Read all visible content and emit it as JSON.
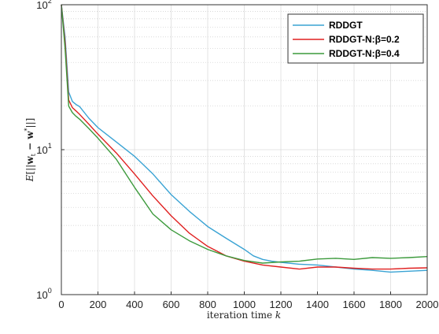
{
  "chart_data": {
    "type": "line",
    "title": "",
    "xlabel": "iteration time k",
    "ylabel": "E[||w_t − w*||]",
    "ylabel_parts": {
      "prefix": "E",
      "open": "[||",
      "w": "w",
      "sub": "t",
      "minus": " − w",
      "sup": "*",
      "close": "||]"
    },
    "x_scale": "linear",
    "y_scale": "log",
    "xlim": [
      0,
      2000
    ],
    "ylim": [
      1,
      100
    ],
    "xticks": [
      {
        "value": 0,
        "label": "0"
      },
      {
        "value": 200,
        "label": "200"
      },
      {
        "value": 400,
        "label": "400"
      },
      {
        "value": 600,
        "label": "600"
      },
      {
        "value": 800,
        "label": "800"
      },
      {
        "value": 1000,
        "label": "1000"
      },
      {
        "value": 1200,
        "label": "1200"
      },
      {
        "value": 1400,
        "label": "1400"
      },
      {
        "value": 1600,
        "label": "1600"
      },
      {
        "value": 1800,
        "label": "1800"
      },
      {
        "value": 2000,
        "label": "2000"
      }
    ],
    "yticks": [
      {
        "value": 1,
        "base": "10",
        "exp": "0"
      },
      {
        "value": 10,
        "base": "10",
        "exp": "1"
      },
      {
        "value": 100,
        "base": "10",
        "exp": "2"
      }
    ],
    "grid": true,
    "legend_position": "top-right",
    "series": [
      {
        "name": "RDDGT",
        "color": "#3aa3d4",
        "x": [
          0,
          20,
          40,
          60,
          80,
          100,
          150,
          200,
          300,
          400,
          500,
          600,
          700,
          800,
          900,
          1000,
          1050,
          1100,
          1150,
          1200,
          1300,
          1400,
          1500,
          1600,
          1700,
          1800,
          1900,
          2000
        ],
        "y": [
          100,
          60,
          25,
          21.5,
          20.5,
          19.8,
          16.5,
          14.2,
          11.3,
          9.0,
          6.8,
          4.9,
          3.75,
          2.95,
          2.45,
          2.05,
          1.85,
          1.75,
          1.7,
          1.67,
          1.62,
          1.6,
          1.55,
          1.5,
          1.47,
          1.43,
          1.45,
          1.47
        ]
      },
      {
        "name": "RDDGT-N:β=0.2",
        "color": "#e02020",
        "x": [
          0,
          20,
          40,
          60,
          80,
          100,
          150,
          200,
          300,
          400,
          500,
          600,
          700,
          800,
          900,
          1000,
          1100,
          1200,
          1300,
          1400,
          1500,
          1600,
          1700,
          1800,
          1900,
          2000
        ],
        "y": [
          100,
          55,
          22,
          19.5,
          18.5,
          17.5,
          15.0,
          12.8,
          9.5,
          6.8,
          4.8,
          3.5,
          2.65,
          2.15,
          1.85,
          1.7,
          1.6,
          1.55,
          1.5,
          1.55,
          1.55,
          1.52,
          1.5,
          1.5,
          1.52,
          1.53
        ]
      },
      {
        "name": "RDDGT-N:β=0.4",
        "color": "#3c9a3c",
        "x": [
          0,
          20,
          40,
          60,
          80,
          100,
          150,
          200,
          300,
          400,
          500,
          600,
          700,
          800,
          900,
          1000,
          1100,
          1200,
          1300,
          1400,
          1500,
          1600,
          1700,
          1800,
          1900,
          2000
        ],
        "y": [
          100,
          50,
          20,
          18,
          17,
          16.2,
          14.0,
          12.0,
          8.6,
          5.5,
          3.6,
          2.8,
          2.35,
          2.05,
          1.85,
          1.72,
          1.65,
          1.68,
          1.7,
          1.76,
          1.78,
          1.75,
          1.8,
          1.78,
          1.8,
          1.83
        ]
      }
    ]
  }
}
